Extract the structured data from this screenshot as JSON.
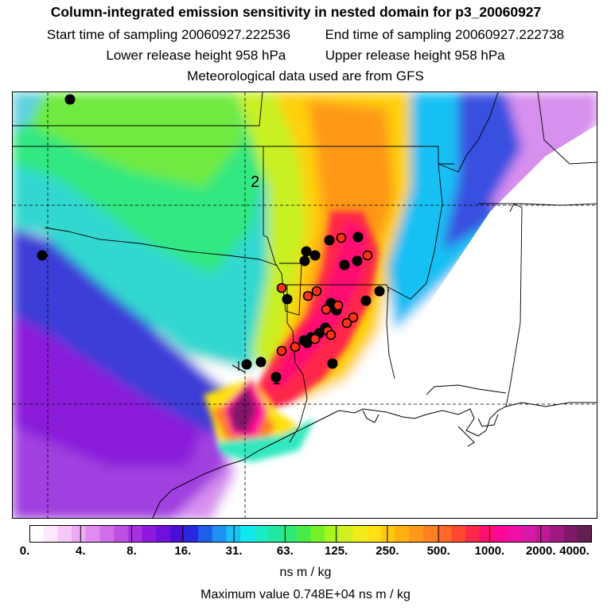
{
  "header": {
    "title": "Column-integrated emission sensitivity in nested domain for p3_20060927",
    "start_label": "Start time of sampling 20060927.222536",
    "end_label": "End time of sampling 20060927.222738",
    "lower_label": "Lower release height  958 hPa",
    "upper_label": "Upper release height  958 hPa",
    "met_label": "Meteorological data used are from GFS"
  },
  "map": {
    "markers": [
      "1",
      "2"
    ],
    "points_black_count": 23,
    "points_red_count": 14
  },
  "colorbar": {
    "tick_labels": [
      "0.",
      "4.",
      "8.",
      "16.",
      "31.",
      "63.",
      "125.",
      "250.",
      "500.",
      "1000.",
      "2000.",
      "4000."
    ],
    "colors": [
      "#ffffff",
      "#fde8fd",
      "#f6c8f8",
      "#ecaaf4",
      "#e08cef",
      "#d06ee9",
      "#bd4fe4",
      "#a830e0",
      "#9018dc",
      "#7010dc",
      "#4a0ed8",
      "#2828e0",
      "#1e5ee8",
      "#1e90f0",
      "#18c0f4",
      "#10e8f0",
      "#18ecc8",
      "#20e8a0",
      "#30e878",
      "#48ec48",
      "#78f028",
      "#a8f420",
      "#d0f020",
      "#f0ec18",
      "#ffe010",
      "#ffc810",
      "#ffb010",
      "#ff9818",
      "#ff8020",
      "#ff6828",
      "#ff4830",
      "#ff2848",
      "#ff1070",
      "#ff0898",
      "#f010a8",
      "#d818a8",
      "#c01898",
      "#a01880",
      "#801868",
      "#602050"
    ],
    "units": "ns m / kg"
  },
  "footer": {
    "max_value": "Maximum value  0.748E+04 ns m / kg"
  }
}
